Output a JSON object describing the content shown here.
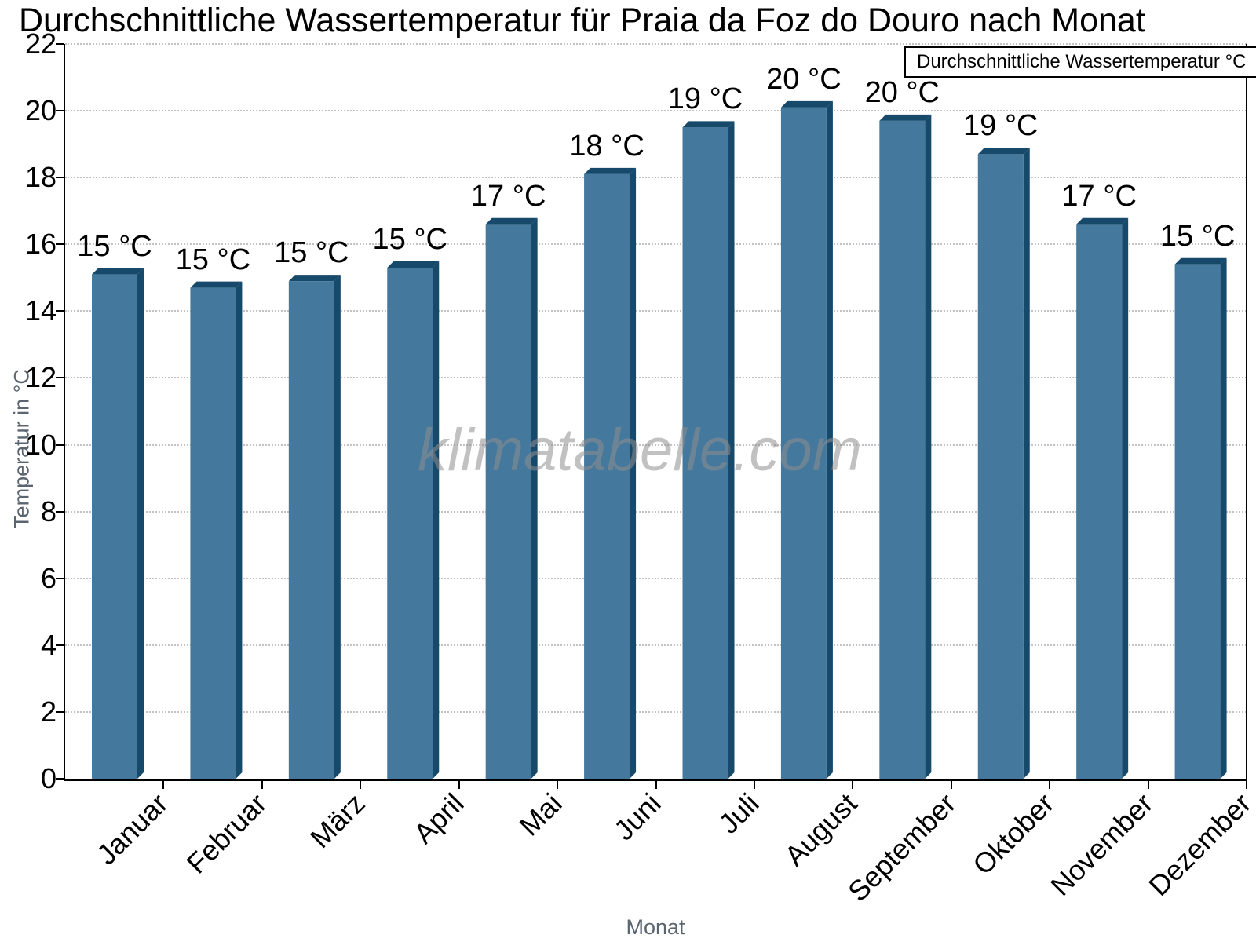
{
  "title": "Durchschnittliche Wassertemperatur für Praia da Foz do Douro nach Monat",
  "watermark": "klimatabelle.com",
  "legend": {
    "label": "Durchschnittliche Wassertemperatur °C"
  },
  "y_axis": {
    "title": "Temperatur in °C",
    "tick_labels": [
      "0",
      "2",
      "4",
      "6",
      "8",
      "10",
      "12",
      "14",
      "16",
      "18",
      "20",
      "22"
    ]
  },
  "x_axis": {
    "title": "Monat"
  },
  "colors": {
    "bar_face": "#44789d",
    "bar_edge_dark": "#17496b",
    "grid": "#c2c2c2",
    "axis": "#000000",
    "axis_title_text": "#5a6570",
    "watermark_text": "#8f8f8f"
  },
  "chart_data": {
    "type": "bar",
    "title": "Durchschnittliche Wassertemperatur für Praia da Foz do Douro nach Monat",
    "categories": [
      "Januar",
      "Februar",
      "März",
      "April",
      "Mai",
      "Juni",
      "Juli",
      "August",
      "September",
      "Oktober",
      "November",
      "Dezember"
    ],
    "series": [
      {
        "name": "Durchschnittliche Wassertemperatur °C",
        "values": [
          15.1,
          14.7,
          14.9,
          15.3,
          16.6,
          18.1,
          19.5,
          20.1,
          19.7,
          18.7,
          16.6,
          15.4
        ],
        "labels": [
          "15 °C",
          "15 °C",
          "15 °C",
          "15 °C",
          "17 °C",
          "18 °C",
          "19 °C",
          "20 °C",
          "20 °C",
          "19 °C",
          "17 °C",
          "15 °C"
        ]
      }
    ],
    "xlabel": "Monat",
    "ylabel": "Temperatur in °C",
    "ylim": [
      0,
      22
    ],
    "ytick_step": 2,
    "grid": "horizontal-dotted",
    "legend_position": "top-right",
    "bar_style": "3d-column"
  }
}
